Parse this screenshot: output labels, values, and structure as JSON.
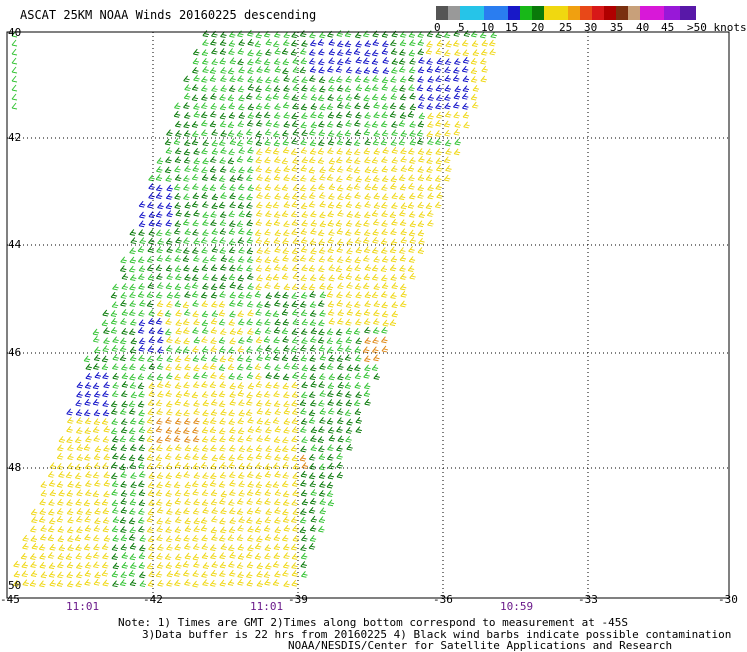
{
  "title": "ASCAT 25KM NOAA Winds 20160225 descending",
  "legend": {
    "swatches": [
      "#555555",
      "#999999",
      "#26c4e8",
      "#2a7df0",
      "#1818c8",
      "#18b818",
      "#0a7a0a",
      "#f0d810",
      "#f0a010",
      "#e84818",
      "#d81818",
      "#b00000",
      "#7a3010",
      "#c8a07a",
      "#d818d8",
      "#9818d8",
      "#5818a8"
    ],
    "labels": [
      "0",
      "5",
      "10",
      "15",
      "20",
      "25",
      "30",
      "35",
      "40",
      "45",
      ">50 knots"
    ]
  },
  "axes": {
    "lat_labels": [
      "40",
      "42",
      "44",
      "46",
      "48",
      "50"
    ],
    "lon_labels": [
      "-45",
      "-42",
      "-39",
      "-36",
      "-33",
      "-30"
    ]
  },
  "times": [
    "11:01",
    "11:01",
    "10:59"
  ],
  "notes": [
    "Note: 1) Times are GMT 2)Times along bottom correspond to measurement at -45S",
    "3)Data buffer is 22 hrs from 20160225 4) Black wind barbs indicate possible contamination",
    "NOAA/NESDIS/Center for Satellite Applications and Research"
  ],
  "colors": {
    "light_green": "#35c335",
    "dark_green": "#0a7a0a",
    "yellow": "#f0d818",
    "orange": "#e08a18",
    "blue": "#1414c8",
    "grid": "#000000"
  }
}
